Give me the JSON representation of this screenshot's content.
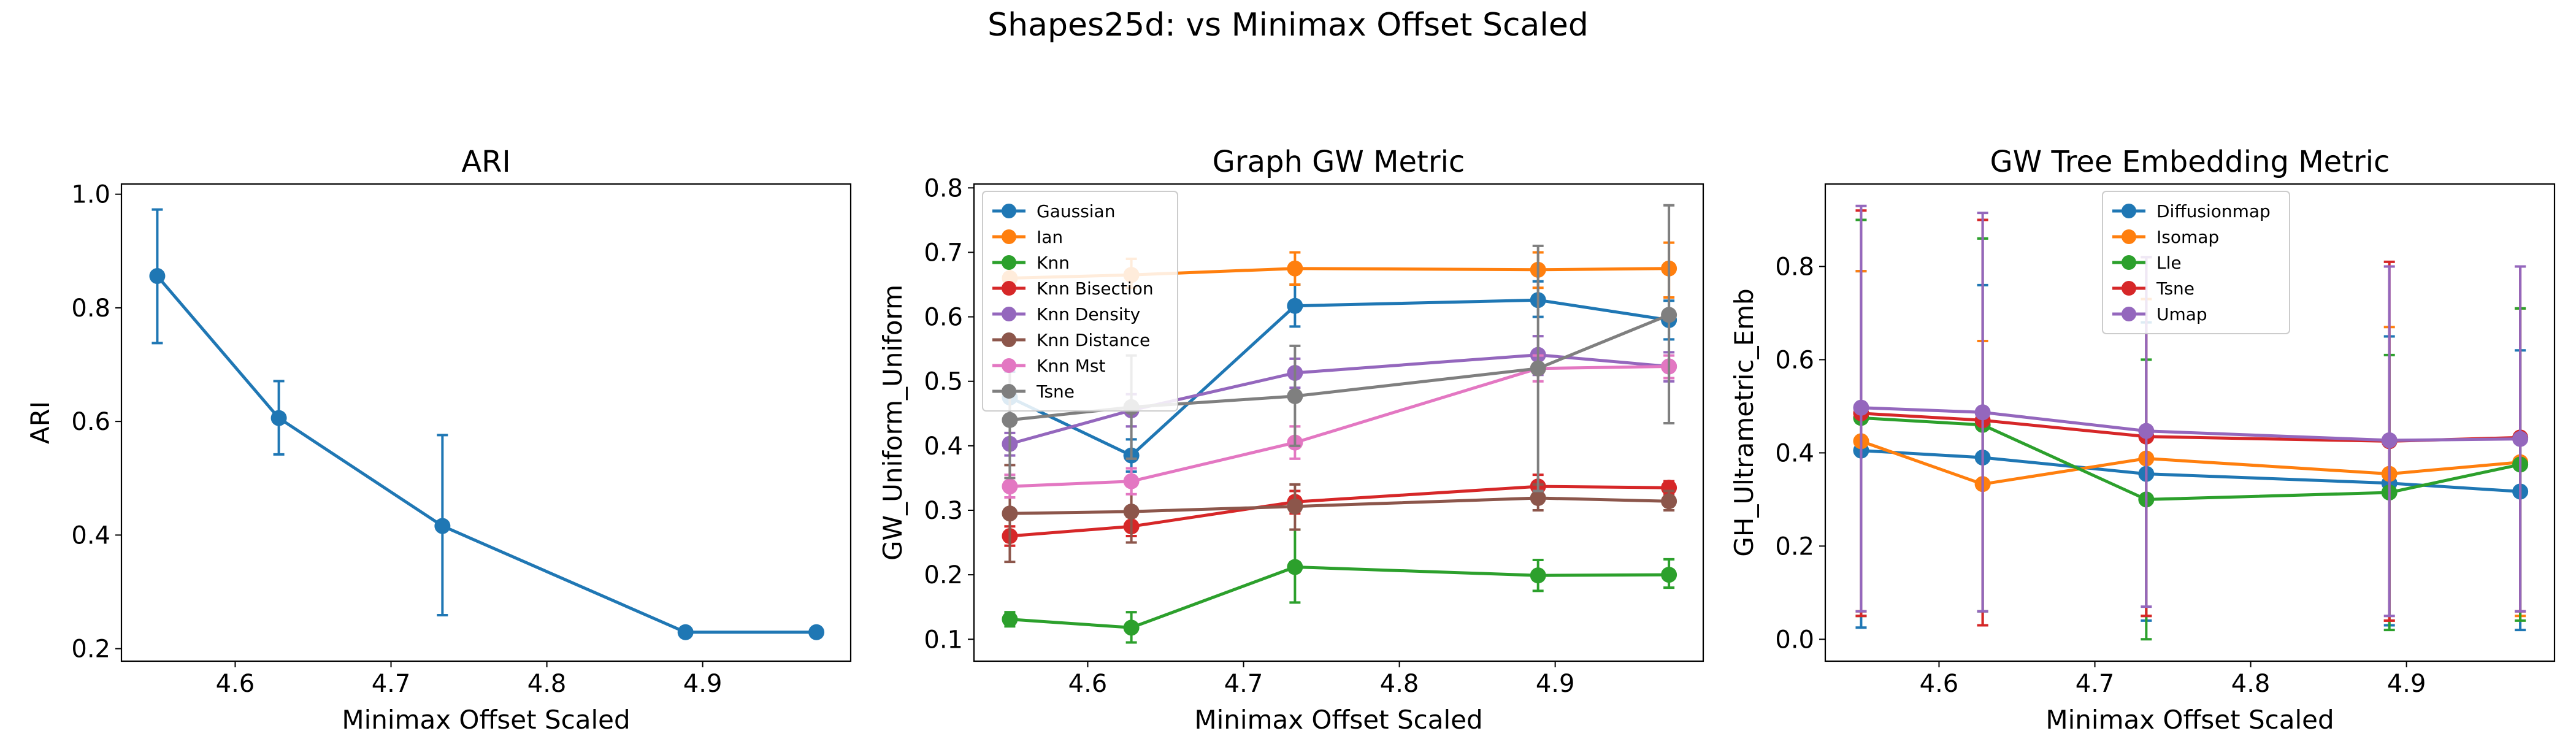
{
  "figure": {
    "suptitle": "Shapes25d: vs Minimax Offset Scaled"
  },
  "colors": {
    "tab_blue": "#1f77b4",
    "tab_orange": "#ff7f0e",
    "tab_green": "#2ca02c",
    "tab_red": "#d62728",
    "tab_purple": "#9467bd",
    "tab_brown": "#8c564b",
    "tab_pink": "#e377c2",
    "tab_gray": "#7f7f7f"
  },
  "chart_data": [
    {
      "type": "line",
      "title": "ARI",
      "xlabel": "Minimax Offset Scaled",
      "ylabel": "ARI",
      "xlim": [
        4.527,
        4.995
      ],
      "ylim": [
        0.178,
        1.018
      ],
      "xticks": [
        4.6,
        4.7,
        4.8,
        4.9
      ],
      "yticks": [
        0.2,
        0.4,
        0.6,
        0.8,
        1.0
      ],
      "x": [
        4.55,
        4.628,
        4.733,
        4.889,
        4.973
      ],
      "legend": null,
      "series": [
        {
          "color": "#1f77b4",
          "values": [
            0.856,
            0.606,
            0.416,
            0.229,
            0.229
          ],
          "err_low": [
            0.738,
            0.542,
            0.259,
            0.229,
            0.229
          ],
          "err_high": [
            0.973,
            0.671,
            0.576,
            0.229,
            0.229
          ]
        }
      ]
    },
    {
      "type": "line",
      "title": "Graph GW Metric",
      "xlabel": "Minimax Offset Scaled",
      "ylabel": "GW_Uniform_Uniform",
      "xlim": [
        4.527,
        4.995
      ],
      "ylim": [
        0.066,
        0.806
      ],
      "xticks": [
        4.6,
        4.7,
        4.8,
        4.9
      ],
      "yticks": [
        0.1,
        0.2,
        0.3,
        0.4,
        0.5,
        0.6,
        0.7,
        0.8
      ],
      "x": [
        4.55,
        4.628,
        4.733,
        4.889,
        4.973
      ],
      "legend": "upper left",
      "series": [
        {
          "name": "Gaussian",
          "color": "#1f77b4",
          "values": [
            0.475,
            0.385,
            0.617,
            0.626,
            0.595
          ],
          "err_low": [
            0.435,
            0.36,
            0.585,
            0.6,
            0.565
          ],
          "err_high": [
            0.515,
            0.41,
            0.65,
            0.655,
            0.625
          ]
        },
        {
          "name": "Ian",
          "color": "#ff7f0e",
          "values": [
            0.66,
            0.665,
            0.675,
            0.673,
            0.675
          ],
          "err_low": [
            0.64,
            0.645,
            0.65,
            0.645,
            0.63
          ],
          "err_high": [
            0.68,
            0.69,
            0.7,
            0.7,
            0.715
          ]
        },
        {
          "name": "Knn",
          "color": "#2ca02c",
          "values": [
            0.131,
            0.118,
            0.212,
            0.199,
            0.2
          ],
          "err_low": [
            0.12,
            0.095,
            0.157,
            0.175,
            0.18
          ],
          "err_high": [
            0.142,
            0.142,
            0.27,
            0.223,
            0.224
          ]
        },
        {
          "name": "Knn Bisection",
          "color": "#d62728",
          "values": [
            0.26,
            0.275,
            0.313,
            0.337,
            0.335
          ],
          "err_low": [
            0.245,
            0.26,
            0.295,
            0.32,
            0.325
          ],
          "err_high": [
            0.275,
            0.29,
            0.33,
            0.355,
            0.345
          ]
        },
        {
          "name": "Knn Density",
          "color": "#9467bd",
          "values": [
            0.403,
            0.455,
            0.513,
            0.541,
            0.523
          ],
          "err_low": [
            0.385,
            0.43,
            0.49,
            0.51,
            0.5
          ],
          "err_high": [
            0.42,
            0.48,
            0.535,
            0.57,
            0.545
          ]
        },
        {
          "name": "Knn Distance",
          "color": "#8c564b",
          "values": [
            0.295,
            0.298,
            0.306,
            0.319,
            0.314
          ],
          "err_low": [
            0.22,
            0.25,
            0.27,
            0.3,
            0.3
          ],
          "err_high": [
            0.37,
            0.345,
            0.34,
            0.34,
            0.33
          ]
        },
        {
          "name": "Knn Mst",
          "color": "#e377c2",
          "values": [
            0.337,
            0.345,
            0.405,
            0.52,
            0.523
          ],
          "err_low": [
            0.32,
            0.325,
            0.38,
            0.5,
            0.505
          ],
          "err_high": [
            0.355,
            0.365,
            0.43,
            0.54,
            0.54
          ]
        },
        {
          "name": "Tsne",
          "color": "#7f7f7f",
          "values": [
            0.44,
            0.46,
            0.477,
            0.52,
            0.603
          ],
          "err_low": [
            0.35,
            0.38,
            0.4,
            0.33,
            0.435
          ],
          "err_high": [
            0.525,
            0.54,
            0.555,
            0.71,
            0.773
          ]
        }
      ]
    },
    {
      "type": "line",
      "title": "GW Tree Embedding Metric",
      "xlabel": "Minimax Offset Scaled",
      "ylabel": "GH_Ultrametric_Emb",
      "xlim": [
        4.527,
        4.995
      ],
      "ylim": [
        -0.047,
        0.977
      ],
      "xticks": [
        4.6,
        4.7,
        4.8,
        4.9
      ],
      "yticks": [
        0.0,
        0.2,
        0.4,
        0.6,
        0.8
      ],
      "x": [
        4.55,
        4.628,
        4.733,
        4.889,
        4.973
      ],
      "legend": "upper center",
      "series": [
        {
          "name": "Diffusionmap",
          "color": "#1f77b4",
          "values": [
            0.405,
            0.39,
            0.355,
            0.335,
            0.317
          ],
          "err_low": [
            0.025,
            0.03,
            0.04,
            0.03,
            0.02
          ],
          "err_high": [
            0.79,
            0.76,
            0.68,
            0.65,
            0.62
          ]
        },
        {
          "name": "Isomap",
          "color": "#ff7f0e",
          "values": [
            0.425,
            0.333,
            0.388,
            0.355,
            0.38
          ],
          "err_low": [
            0.06,
            0.03,
            0.05,
            0.04,
            0.05
          ],
          "err_high": [
            0.79,
            0.64,
            0.73,
            0.67,
            0.71
          ]
        },
        {
          "name": "Lle",
          "color": "#2ca02c",
          "values": [
            0.475,
            0.46,
            0.3,
            0.315,
            0.375
          ],
          "err_low": [
            0.05,
            0.06,
            0.0,
            0.02,
            0.04
          ],
          "err_high": [
            0.9,
            0.86,
            0.6,
            0.61,
            0.71
          ]
        },
        {
          "name": "Tsne",
          "color": "#d62728",
          "values": [
            0.485,
            0.47,
            0.435,
            0.425,
            0.433
          ],
          "err_low": [
            0.05,
            0.03,
            0.05,
            0.04,
            0.06
          ],
          "err_high": [
            0.92,
            0.9,
            0.82,
            0.81,
            0.8
          ]
        },
        {
          "name": "Umap",
          "color": "#9467bd",
          "values": [
            0.497,
            0.487,
            0.447,
            0.427,
            0.43
          ],
          "err_low": [
            0.06,
            0.06,
            0.07,
            0.05,
            0.06
          ],
          "err_high": [
            0.93,
            0.915,
            0.82,
            0.8,
            0.8
          ]
        }
      ]
    }
  ]
}
